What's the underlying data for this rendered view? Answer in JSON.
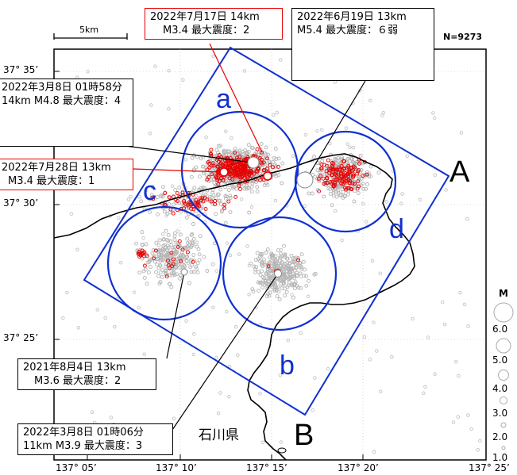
{
  "map": {
    "count_label": "N=9273",
    "scale_label": "5km",
    "prefecture_label": "石川県",
    "legend": {
      "title": "M",
      "labels": [
        "6.0",
        "5.0",
        "4.0",
        "3.0",
        "2.0",
        "1.0"
      ]
    },
    "lat_labels": [
      "37° 35’",
      "37° 30’",
      "37° 25’"
    ],
    "lon_labels": [
      "137° 05’",
      "137° 10’",
      "137° 15’",
      "137° 20’",
      "137° 25’"
    ],
    "region_labels": {
      "a": "a",
      "b": "b",
      "c": "c",
      "d": "d"
    },
    "section_labels": {
      "A": "A",
      "B": "B"
    },
    "colors": {
      "region": "#1030d0",
      "recent": "#e60000",
      "past": "#b4b4b4",
      "coast": "#000000"
    }
  },
  "callouts": {
    "c1": {
      "line1": "2022年7月17日 14km",
      "line2": "M3.4 最大震度：2"
    },
    "c2": {
      "line1": "2022年6月19日 13km",
      "line2": "M5.4 最大震度：６弱"
    },
    "c3": {
      "line1": "2022年3月8日 01時58分",
      "line2": "14km M4.8 最大震度：4"
    },
    "c4": {
      "line1": "2022年7月28日 13km",
      "line2": "M3.4 最大震度：1"
    },
    "c5": {
      "line1": "2021年8月4日 13km",
      "line2": "M3.6 最大震度：2"
    },
    "c6": {
      "line1": "2022年3月8日 01時06分",
      "line2": "11km M3.9 最大震度：3"
    }
  }
}
